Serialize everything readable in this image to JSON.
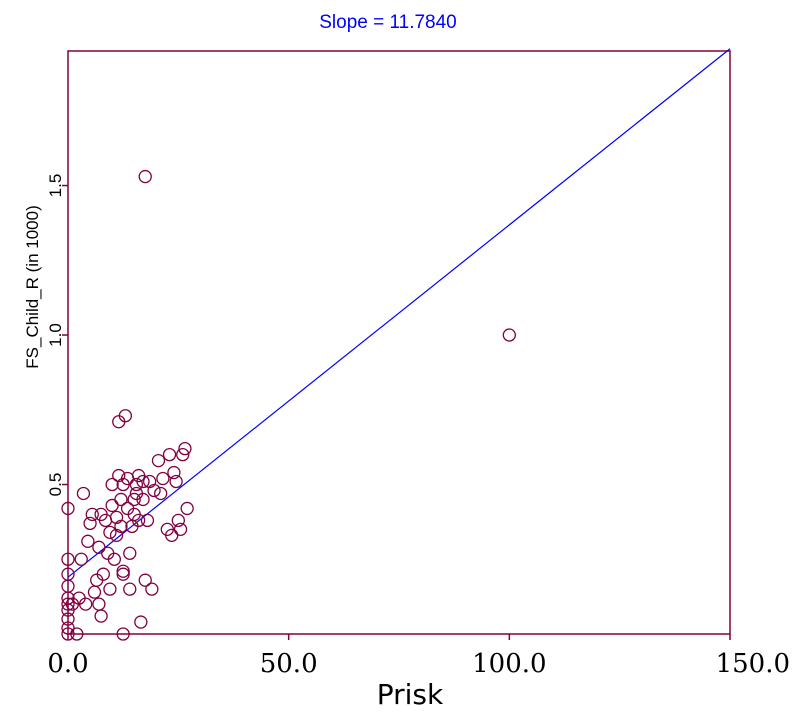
{
  "chart_data": {
    "type": "scatter",
    "title": "Slope = 11.7840",
    "xlabel": "Prisk",
    "ylabel": "FS_Child_R (in 1000)",
    "xlim": [
      0,
      150
    ],
    "ylim": [
      0,
      1.95
    ],
    "xticks": [
      0,
      50,
      100,
      150
    ],
    "xtick_labels": [
      "0.0",
      "50.0",
      "100.0",
      "150.0"
    ],
    "yticks": [
      0.5,
      1.0,
      1.5
    ],
    "ytick_labels": [
      "0.5",
      "1.0",
      "1.5"
    ],
    "grid": false,
    "regression_line": {
      "slope": 0.011784,
      "intercept": 0.19
    },
    "points": [
      [
        17.5,
        1.53
      ],
      [
        100,
        1.0
      ],
      [
        0,
        0.0
      ],
      [
        0,
        0.02
      ],
      [
        0,
        0.05
      ],
      [
        0,
        0.08
      ],
      [
        0,
        0.1
      ],
      [
        0,
        0.12
      ],
      [
        0,
        0.16
      ],
      [
        0,
        0.2
      ],
      [
        0,
        0.25
      ],
      [
        0,
        0.42
      ],
      [
        1,
        0.1
      ],
      [
        2,
        0.0
      ],
      [
        2.5,
        0.12
      ],
      [
        3,
        0.25
      ],
      [
        3.5,
        0.47
      ],
      [
        4,
        0.1
      ],
      [
        4.5,
        0.31
      ],
      [
        5,
        0.37
      ],
      [
        5.5,
        0.4
      ],
      [
        6,
        0.14
      ],
      [
        6.5,
        0.18
      ],
      [
        7,
        0.1
      ],
      [
        7,
        0.29
      ],
      [
        7.5,
        0.4
      ],
      [
        7.5,
        0.06
      ],
      [
        8,
        0.2
      ],
      [
        8.5,
        0.38
      ],
      [
        9,
        0.27
      ],
      [
        9.5,
        0.34
      ],
      [
        9.5,
        0.15
      ],
      [
        10,
        0.43
      ],
      [
        10,
        0.5
      ],
      [
        10.5,
        0.25
      ],
      [
        11,
        0.33
      ],
      [
        11,
        0.39
      ],
      [
        11.5,
        0.53
      ],
      [
        11.5,
        0.71
      ],
      [
        12,
        0.45
      ],
      [
        12,
        0.36
      ],
      [
        12.5,
        0.5
      ],
      [
        12.5,
        0.21
      ],
      [
        12.5,
        0.2
      ],
      [
        12.5,
        0.0
      ],
      [
        13,
        0.73
      ],
      [
        13.5,
        0.42
      ],
      [
        13.5,
        0.52
      ],
      [
        14,
        0.15
      ],
      [
        14,
        0.27
      ],
      [
        14.5,
        0.36
      ],
      [
        15,
        0.4
      ],
      [
        15,
        0.45
      ],
      [
        15.5,
        0.47
      ],
      [
        15.5,
        0.5
      ],
      [
        16,
        0.38
      ],
      [
        16,
        0.53
      ],
      [
        16.5,
        0.04
      ],
      [
        17,
        0.45
      ],
      [
        17,
        0.51
      ],
      [
        17.5,
        0.18
      ],
      [
        18,
        0.38
      ],
      [
        18.5,
        0.51
      ],
      [
        19,
        0.15
      ],
      [
        19.5,
        0.48
      ],
      [
        20.5,
        0.58
      ],
      [
        21,
        0.47
      ],
      [
        21.5,
        0.52
      ],
      [
        22.5,
        0.35
      ],
      [
        23,
        0.6
      ],
      [
        23.5,
        0.33
      ],
      [
        24,
        0.54
      ],
      [
        24.5,
        0.51
      ],
      [
        25,
        0.38
      ],
      [
        25.5,
        0.35
      ],
      [
        26,
        0.6
      ],
      [
        26.5,
        0.62
      ],
      [
        27,
        0.42
      ]
    ],
    "colors": {
      "points": "#800040",
      "line": "#0000ff",
      "frame": "#800040",
      "title": "#0000ff"
    }
  }
}
